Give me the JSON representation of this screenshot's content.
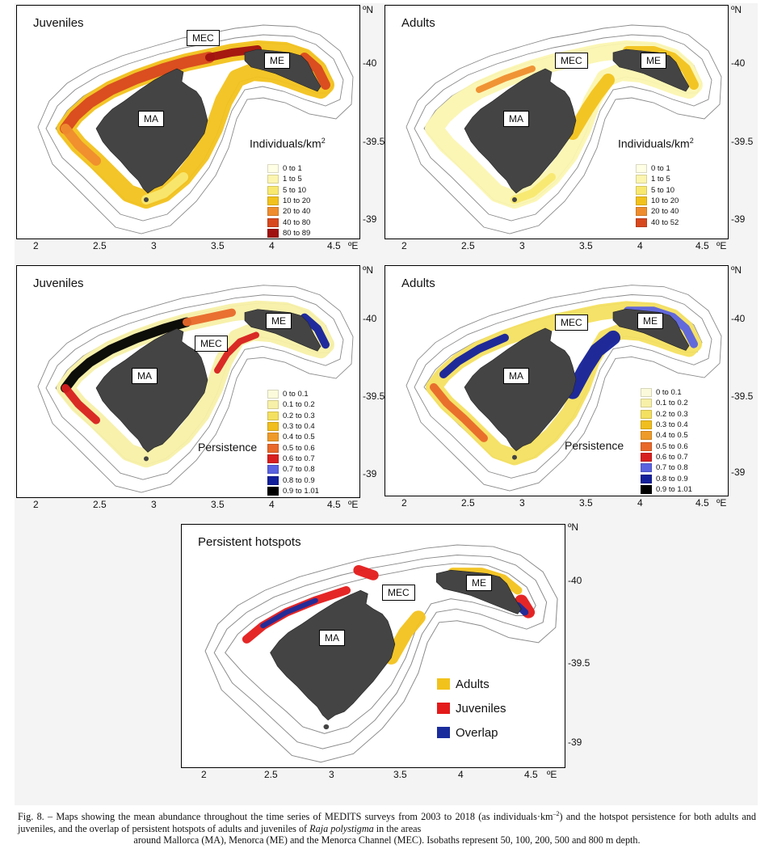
{
  "panels": [
    {
      "id": "juv-abundance",
      "title": "Juveniles",
      "legend_title": "Individuals/km",
      "legend_title_sup": "2",
      "legend": [
        {
          "label": "0  to  1",
          "color": "#ffffe6"
        },
        {
          "label": "1  to  5",
          "color": "#fbf5b0"
        },
        {
          "label": "5  to  10",
          "color": "#f8e870"
        },
        {
          "label": "10  to  20",
          "color": "#f2c21c"
        },
        {
          "label": "20  to  40",
          "color": "#ef8d2e"
        },
        {
          "label": "40  to  80",
          "color": "#d8481f"
        },
        {
          "label": "80  to  89",
          "color": "#a01010"
        }
      ],
      "labels": {
        "ma": "MA",
        "mec": "MEC",
        "me": "ME"
      }
    },
    {
      "id": "adu-abundance",
      "title": "Adults",
      "legend_title": "Individuals/km",
      "legend_title_sup": "2",
      "legend": [
        {
          "label": "0  to  1",
          "color": "#ffffe6"
        },
        {
          "label": "1  to  5",
          "color": "#fbf5b0"
        },
        {
          "label": "5  to  10",
          "color": "#f8e870"
        },
        {
          "label": "10  to  20",
          "color": "#f2c21c"
        },
        {
          "label": "20  to  40",
          "color": "#ef8d2e"
        },
        {
          "label": "40  to  52",
          "color": "#d8481f"
        }
      ],
      "labels": {
        "ma": "MA",
        "mec": "MEC",
        "me": "ME"
      }
    },
    {
      "id": "juv-persistence",
      "title": "Juveniles",
      "legend_title": "Persistence",
      "legend_title_sup": "",
      "legend": [
        {
          "label": "0  to  0.1",
          "color": "#fbfbdc"
        },
        {
          "label": "0.1  to  0.2",
          "color": "#f7f0a8"
        },
        {
          "label": "0.2  to  0.3",
          "color": "#f4e060"
        },
        {
          "label": "0.3  to  0.4",
          "color": "#f0be1e"
        },
        {
          "label": "0.4  to  0.5",
          "color": "#ee9a2a"
        },
        {
          "label": "0.5  to  0.6",
          "color": "#e8682a"
        },
        {
          "label": "0.6  to  0.7",
          "color": "#d81f1f"
        },
        {
          "label": "0.7  to  0.8",
          "color": "#5a62e0"
        },
        {
          "label": "0.8  to  0.9",
          "color": "#13209b"
        },
        {
          "label": "0.9  to  1.01",
          "color": "#000000"
        }
      ],
      "labels": {
        "ma": "MA",
        "mec": "MEC",
        "me": "ME"
      }
    },
    {
      "id": "adu-persistence",
      "title": "Adults",
      "legend_title": "Persistence",
      "legend_title_sup": "",
      "legend": [
        {
          "label": "0  to  0.1",
          "color": "#fbfbdc"
        },
        {
          "label": "0.1  to  0.2",
          "color": "#f7f0a8"
        },
        {
          "label": "0.2  to  0.3",
          "color": "#f4e060"
        },
        {
          "label": "0.3  to  0.4",
          "color": "#f0be1e"
        },
        {
          "label": "0.4  to  0.5",
          "color": "#ee9a2a"
        },
        {
          "label": "0.5  to  0.6",
          "color": "#e8682a"
        },
        {
          "label": "0.6  to  0.7",
          "color": "#d81f1f"
        },
        {
          "label": "0.7  to  0.8",
          "color": "#5a62e0"
        },
        {
          "label": "0.8  to  0.9",
          "color": "#13209b"
        },
        {
          "label": "0.9  to  1.01",
          "color": "#000000"
        }
      ],
      "labels": {
        "ma": "MA",
        "mec": "MEC",
        "me": "ME"
      }
    },
    {
      "id": "hotspots",
      "title": "Persistent hotspots",
      "legend_title": "",
      "legend_title_sup": "",
      "legend": [
        {
          "label": "Adults",
          "color": "#f2c21c"
        },
        {
          "label": "Juveniles",
          "color": "#e41a1a"
        },
        {
          "label": "Overlap",
          "color": "#1a2c9c"
        }
      ],
      "labels": {
        "ma": "MA",
        "mec": "MEC",
        "me": "ME"
      }
    }
  ],
  "axes": {
    "lon_ticks": [
      "2",
      "2.5",
      "3",
      "3.5",
      "4",
      "4.5"
    ],
    "lon_unit": "ºE",
    "lat_ticks": [
      "40",
      "39.5",
      "39"
    ],
    "lat_unit": "ºN"
  },
  "colors": {
    "land": "#444444",
    "isobath": "#8a8a8a"
  },
  "caption": {
    "part1": "Fig. 8. – Maps showing the mean abundance throughout the time series of MEDITS surveys from 2003 to 2018 (as individuals·km",
    "sup": "–2",
    "part2": ") and the hotspot persistence for both adults and juveniles, and the overlap of persistent hotspots of adults and juveniles of ",
    "species": "Raja polystigma",
    "part3": " in the areas",
    "part4": "around Mallorca (MA), Menorca (ME) and the Menorca Channel (MEC). Isobaths represent 50, 100, 200, 500 and 800 m depth."
  }
}
